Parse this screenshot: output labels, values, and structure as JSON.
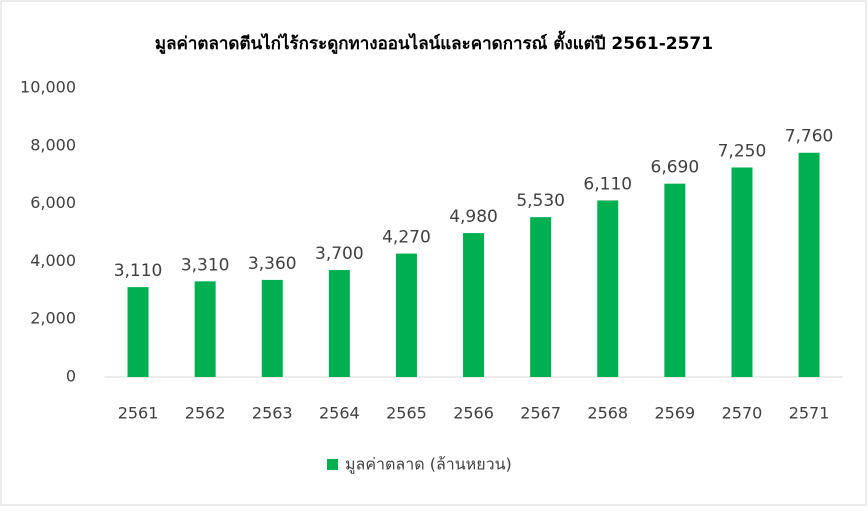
{
  "chart_data": {
    "type": "bar",
    "title": "มูลค่าตลาดตีนไก่ไร้กระดูกทางออนไลน์และคาดการณ์ ตั้งแต่ปี 2561-2571",
    "categories": [
      "2561",
      "2562",
      "2563",
      "2564",
      "2565",
      "2566",
      "2567",
      "2568",
      "2569",
      "2570",
      "2571"
    ],
    "series": [
      {
        "name": "มูลค่าตลาด (ล้านหยวน)",
        "color": "#00b050",
        "values": [
          3110,
          3310,
          3360,
          3700,
          4270,
          4980,
          5530,
          6110,
          6690,
          7250,
          7760
        ],
        "value_labels": [
          "3,110",
          "3,310",
          "3,360",
          "3,700",
          "4,270",
          "4,980",
          "5,530",
          "6,110",
          "6,690",
          "7,250",
          "7,760"
        ]
      }
    ],
    "ylim": [
      0,
      10000
    ],
    "yticks": [
      0,
      {
        "value": 2000,
        "label": "2,000"
      },
      {
        "value": 4000,
        "label": "4,000"
      },
      {
        "value": 6000,
        "label": "6,000"
      },
      {
        "value": 8000,
        "label": "8,000"
      },
      {
        "value": 10000,
        "label": "10,000"
      }
    ],
    "grid": false,
    "legend": "bottom"
  }
}
